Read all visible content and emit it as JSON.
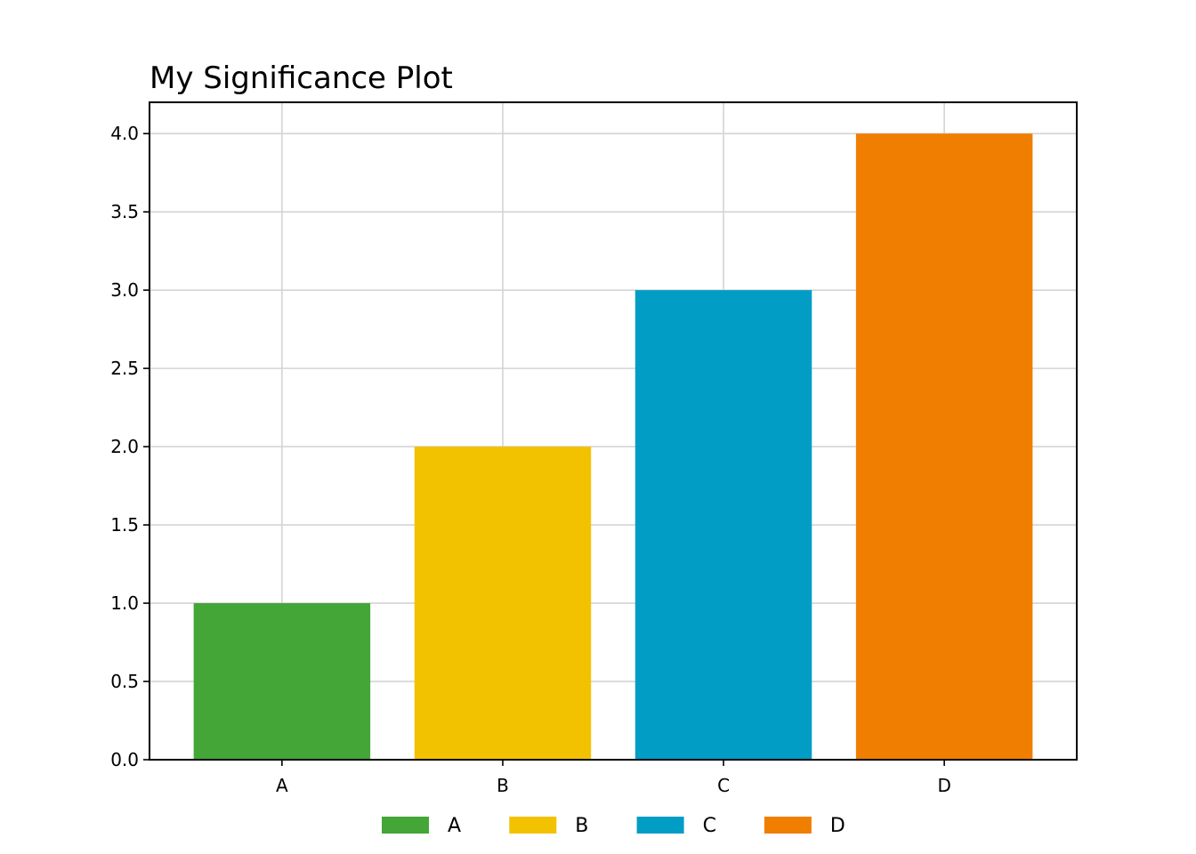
{
  "chart_data": {
    "type": "bar",
    "title": "My Significance Plot",
    "xlabel": "",
    "ylabel": "",
    "categories": [
      "A",
      "B",
      "C",
      "D"
    ],
    "values": [
      1.0,
      2.0,
      3.0,
      4.0
    ],
    "colors": [
      "#43a637",
      "#f2c200",
      "#019dc5",
      "#f07e00"
    ],
    "ylim": [
      0.0,
      4.2
    ],
    "yticks": [
      "0.0",
      "0.5",
      "1.0",
      "1.5",
      "2.0",
      "2.5",
      "3.0",
      "3.5",
      "4.0"
    ],
    "grid": true,
    "legend": {
      "placement": "bottom-center",
      "entries": [
        "A",
        "B",
        "C",
        "D"
      ]
    }
  }
}
